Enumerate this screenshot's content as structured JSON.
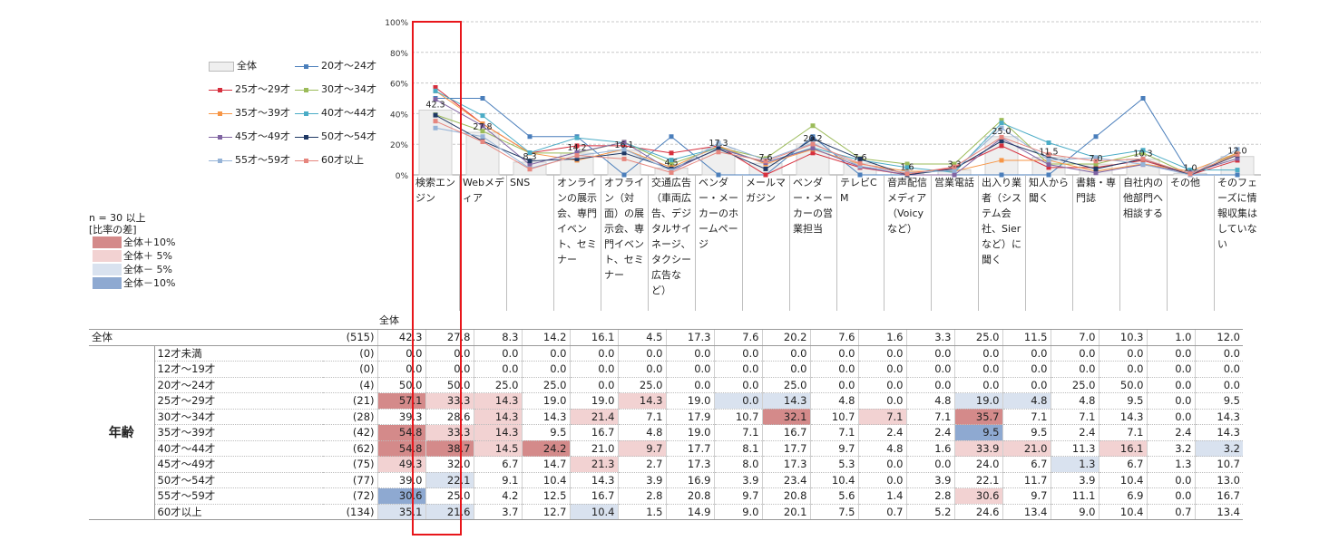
{
  "chart_data": {
    "type": "line",
    "y_ticks": [
      "0%",
      "20%",
      "40%",
      "60%",
      "80%",
      "100%"
    ],
    "ylim": [
      0,
      100
    ],
    "categories": [
      "検索エンジン",
      "Webメディア",
      "SNS",
      "オンラインの展示会、専門イベント、セミナー",
      "オフライン（対面）の展示会、専門イベント、セミナー",
      "交通広告（車両広告、デジタルサイネージ、タクシー広告など）",
      "ベンダー・メーカーのホームページ",
      "メールマガジン",
      "ベンダー・メーカーの営業担当",
      "テレビCM",
      "音声配信メディア（Voicyなど）",
      "営業電話",
      "出入り業者（システム会社、Sierなど）に聞く",
      "知人から聞く",
      "書籍・専門誌",
      "自社内の他部門へ相談する",
      "その他",
      "そのフェーズに情報収集はしていない"
    ],
    "bar_labels": [
      "42.3",
      "27.8",
      "8.3",
      "14.2",
      "16.1",
      "4.5",
      "17.3",
      "7.6",
      "20.2",
      "7.6",
      "1.6",
      "3.3",
      "25.0",
      "11.5",
      "7.0",
      "10.3",
      "1.0",
      "12.0"
    ],
    "series": [
      {
        "name": "全体",
        "color": "#e0e0e0",
        "n": "(515)",
        "values": [
          42.3,
          27.8,
          8.3,
          14.2,
          16.1,
          4.5,
          17.3,
          7.6,
          20.2,
          7.6,
          1.6,
          3.3,
          25.0,
          11.5,
          7.0,
          10.3,
          1.0,
          12.0
        ]
      },
      {
        "name": "12才未満",
        "n": "(0)",
        "values": [
          0.0,
          0.0,
          0.0,
          0.0,
          0.0,
          0.0,
          0.0,
          0.0,
          0.0,
          0.0,
          0.0,
          0.0,
          0.0,
          0.0,
          0.0,
          0.0,
          0.0,
          0.0
        ]
      },
      {
        "name": "12才～19才",
        "n": "(0)",
        "values": [
          0.0,
          0.0,
          0.0,
          0.0,
          0.0,
          0.0,
          0.0,
          0.0,
          0.0,
          0.0,
          0.0,
          0.0,
          0.0,
          0.0,
          0.0,
          0.0,
          0.0,
          0.0
        ]
      },
      {
        "name": "20才～24才",
        "color": "#4a7ebb",
        "n": "(4)",
        "values": [
          50.0,
          50.0,
          25.0,
          25.0,
          0.0,
          25.0,
          0.0,
          0.0,
          25.0,
          0.0,
          0.0,
          0.0,
          0.0,
          0.0,
          25.0,
          50.0,
          0.0,
          0.0
        ]
      },
      {
        "name": "25才～29才",
        "color": "#d62f3d",
        "n": "(21)",
        "values": [
          57.1,
          33.3,
          14.3,
          19.0,
          19.0,
          14.3,
          19.0,
          0.0,
          14.3,
          4.8,
          0.0,
          4.8,
          19.0,
          4.8,
          4.8,
          9.5,
          0.0,
          9.5
        ]
      },
      {
        "name": "30才～34才",
        "color": "#9bbb59",
        "n": "(28)",
        "values": [
          39.3,
          28.6,
          14.3,
          14.3,
          21.4,
          7.1,
          17.9,
          10.7,
          32.1,
          10.7,
          7.1,
          7.1,
          35.7,
          7.1,
          7.1,
          14.3,
          0.0,
          14.3
        ]
      },
      {
        "name": "35才～39才",
        "color": "#f79646",
        "n": "(42)",
        "values": [
          54.8,
          33.3,
          14.3,
          9.5,
          16.7,
          4.8,
          19.0,
          7.1,
          16.7,
          7.1,
          2.4,
          2.4,
          9.5,
          9.5,
          2.4,
          7.1,
          2.4,
          14.3
        ]
      },
      {
        "name": "40才～44才",
        "color": "#4bacc6",
        "n": "(62)",
        "values": [
          54.8,
          38.7,
          14.5,
          24.2,
          21.0,
          9.7,
          17.7,
          8.1,
          17.7,
          9.7,
          4.8,
          1.6,
          33.9,
          21.0,
          11.3,
          16.1,
          3.2,
          3.2
        ]
      },
      {
        "name": "45才～49才",
        "color": "#8064a2",
        "n": "(75)",
        "values": [
          49.3,
          32.0,
          6.7,
          14.7,
          21.3,
          2.7,
          17.3,
          8.0,
          17.3,
          5.3,
          0.0,
          0.0,
          24.0,
          6.7,
          1.3,
          6.7,
          1.3,
          10.7
        ]
      },
      {
        "name": "50才～54才",
        "color": "#1f3864",
        "n": "(77)",
        "values": [
          39.0,
          22.1,
          9.1,
          10.4,
          14.3,
          3.9,
          16.9,
          3.9,
          23.4,
          10.4,
          0.0,
          3.9,
          22.1,
          11.7,
          3.9,
          10.4,
          0.0,
          13.0
        ]
      },
      {
        "name": "55才～59才",
        "color": "#95b3d7",
        "n": "(72)",
        "values": [
          30.6,
          25.0,
          4.2,
          12.5,
          16.7,
          2.8,
          20.8,
          9.7,
          20.8,
          5.6,
          1.4,
          2.8,
          30.6,
          9.7,
          11.1,
          6.9,
          0.0,
          16.7
        ]
      },
      {
        "name": "60才以上",
        "color": "#e6867e",
        "n": "(134)",
        "values": [
          35.1,
          21.6,
          3.7,
          12.7,
          10.4,
          1.5,
          14.9,
          9.0,
          20.1,
          7.5,
          0.7,
          5.2,
          24.6,
          13.4,
          9.0,
          10.4,
          0.7,
          13.4
        ]
      }
    ]
  },
  "legend": {
    "lines": [
      {
        "label": "全体",
        "kind": "box"
      },
      {
        "label": "20才～24才",
        "color": "#4a7ebb"
      },
      {
        "label": "25才～29才",
        "color": "#d62f3d"
      },
      {
        "label": "30才～34才",
        "color": "#9bbb59"
      },
      {
        "label": "35才～39才",
        "color": "#f79646"
      },
      {
        "label": "40才～44才",
        "color": "#4bacc6"
      },
      {
        "label": "45才～49才",
        "color": "#8064a2"
      },
      {
        "label": "50才～54才",
        "color": "#1f3864"
      },
      {
        "label": "55才～59才",
        "color": "#95b3d7"
      },
      {
        "label": "60才以上",
        "color": "#e6867e"
      }
    ],
    "n_note": "n = 30 以上",
    "diff_title": "[比率の差]",
    "diff_items": [
      {
        "label": "全体＋10%",
        "color": "#d48a8a"
      },
      {
        "label": "全体＋ 5%",
        "color": "#f2d2d2"
      },
      {
        "label": "全体－ 5%",
        "color": "#d9e2ef"
      },
      {
        "label": "全体－10%",
        "color": "#8ea9d1"
      }
    ]
  },
  "table": {
    "header_total": "全体",
    "age_group_label": "年齢",
    "total_row_label": "全体",
    "highlight": {
      "全体＋10%": "#d48a8a",
      "全体＋ 5%": "#f2d2d2",
      "全体－ 5%": "#d9e2ef",
      "全体－10%": "#8ea9d1"
    }
  }
}
